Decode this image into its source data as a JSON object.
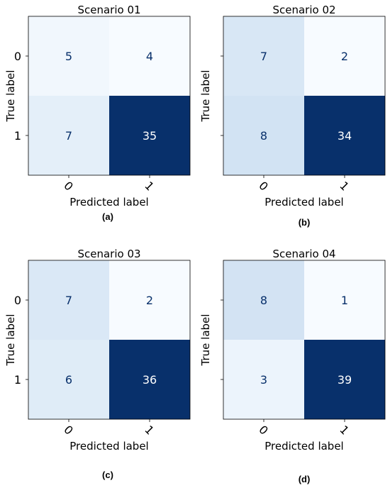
{
  "chart_data": [
    {
      "type": "heatmap",
      "title": "Scenario 01",
      "xlabel": "Predicted label",
      "ylabel": "True label",
      "x_ticks": [
        "0",
        "1"
      ],
      "y_ticks": [
        "0",
        "1"
      ],
      "matrix": [
        [
          5,
          4
        ],
        [
          7,
          35
        ]
      ],
      "colormap": "Blues",
      "caption": "(a)"
    },
    {
      "type": "heatmap",
      "title": "Scenario 02",
      "xlabel": "Predicted label",
      "ylabel": "True label",
      "x_ticks": [
        "0",
        "1"
      ],
      "y_ticks": [
        "0",
        "1"
      ],
      "matrix": [
        [
          7,
          2
        ],
        [
          8,
          34
        ]
      ],
      "colormap": "Blues",
      "caption": "(b)"
    },
    {
      "type": "heatmap",
      "title": "Scenario 03",
      "xlabel": "Predicted label",
      "ylabel": "True label",
      "x_ticks": [
        "0",
        "1"
      ],
      "y_ticks": [
        "0",
        "1"
      ],
      "matrix": [
        [
          7,
          2
        ],
        [
          6,
          36
        ]
      ],
      "colormap": "Blues",
      "caption": "(c)"
    },
    {
      "type": "heatmap",
      "title": "Scenario 04",
      "xlabel": "Predicted label",
      "ylabel": "True label",
      "x_ticks": [
        "0",
        "1"
      ],
      "y_ticks": [
        "0",
        "1"
      ],
      "matrix": [
        [
          8,
          1
        ],
        [
          3,
          39
        ]
      ],
      "colormap": "Blues",
      "caption": "(d)"
    }
  ],
  "colors": {
    "dark_cell": "#08306b",
    "light_cell": "#f7fbff",
    "light_text": "#08306b",
    "dark_text": "#ffffff"
  }
}
